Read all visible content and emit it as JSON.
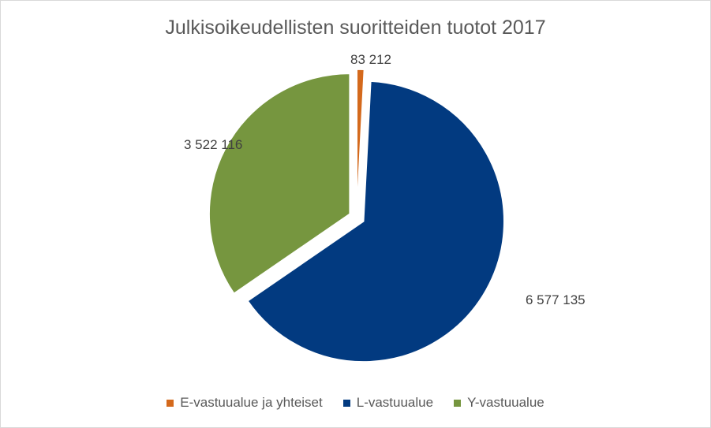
{
  "chart_data": {
    "type": "pie",
    "title": "Julkisoikeudellisten suoritteiden tuotot 2017",
    "categories": [
      "E-vastuualue ja yhteiset",
      "L-vastuualue",
      "Y-vastuualue"
    ],
    "values": [
      83212,
      6577135,
      3522116
    ],
    "value_labels": [
      "83 212",
      "6 577 135",
      "3 522 116"
    ],
    "colors": [
      "#d4691c",
      "#023a80",
      "#76963f"
    ],
    "legend": "bottom",
    "exploded": true
  }
}
